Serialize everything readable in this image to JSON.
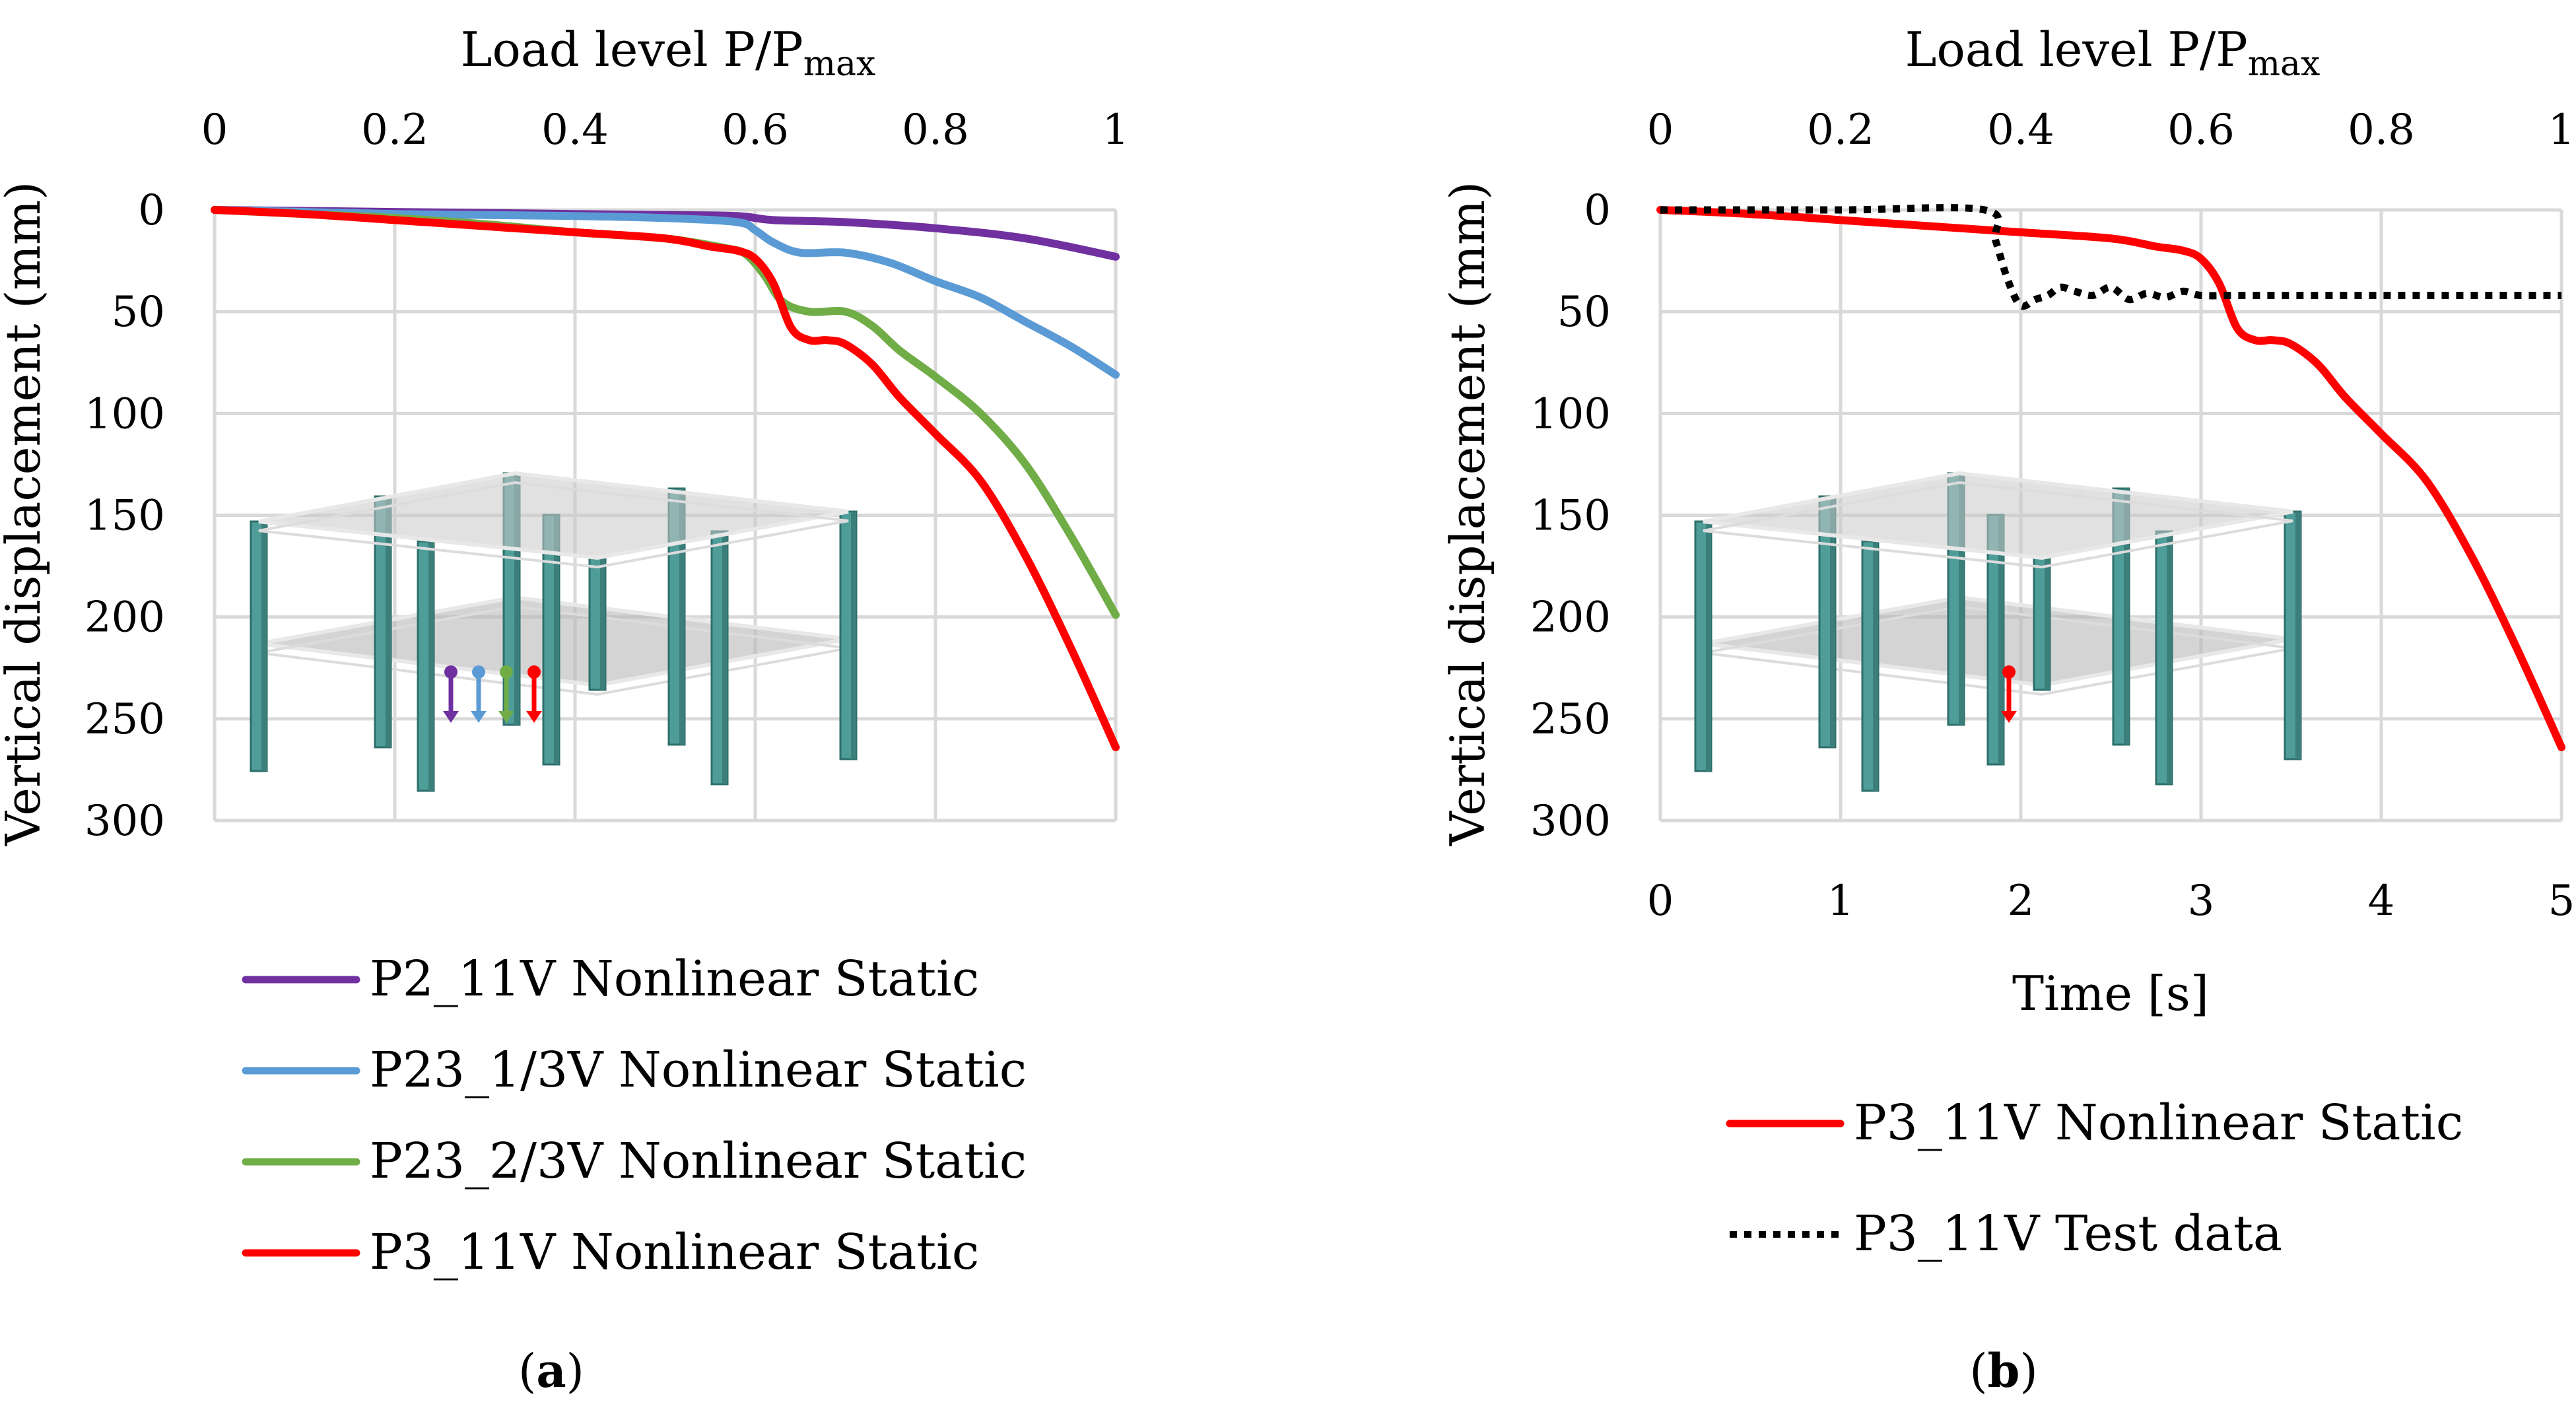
{
  "chart_data": [
    {
      "type": "line",
      "panel_label": "a",
      "xlabel_top": {
        "main": "Load level P/P",
        "sub": "max"
      },
      "ylabel": "Vertical displacement (mm)",
      "xlim": [
        0,
        1
      ],
      "ylim": [
        0,
        300
      ],
      "y_inverted": true,
      "x_axis_position": "top",
      "grid": true,
      "x_ticks": [
        "0",
        "0.2",
        "0.4",
        "0.6",
        "0.8",
        "1"
      ],
      "y_ticks": [
        "0",
        "50",
        "100",
        "150",
        "200",
        "250",
        "300"
      ],
      "legend_position": "bottom",
      "series": [
        {
          "name": "P2_11V Nonlinear Static",
          "color": "#7030a0",
          "style": "solid",
          "x": [
            0,
            0.1,
            0.2,
            0.3,
            0.4,
            0.5,
            0.58,
            0.62,
            0.7,
            0.8,
            0.9,
            1.0
          ],
          "y": [
            0,
            0.5,
            1,
            1.5,
            2,
            2.5,
            3,
            5,
            6,
            9,
            14,
            23
          ]
        },
        {
          "name": "P23_1/3V Nonlinear Static",
          "color": "#5b9bd5",
          "style": "solid",
          "x": [
            0,
            0.1,
            0.2,
            0.3,
            0.4,
            0.5,
            0.58,
            0.6,
            0.62,
            0.65,
            0.7,
            0.75,
            0.8,
            0.85,
            0.9,
            0.95,
            1.0
          ],
          "y": [
            0,
            1,
            2,
            2.5,
            3,
            4,
            6,
            10,
            16,
            21,
            21,
            26,
            35,
            43,
            55,
            67,
            81
          ]
        },
        {
          "name": "P23_2/3V Nonlinear Static",
          "color": "#70ad47",
          "style": "solid",
          "x": [
            0,
            0.1,
            0.2,
            0.3,
            0.4,
            0.5,
            0.57,
            0.59,
            0.61,
            0.63,
            0.66,
            0.7,
            0.73,
            0.76,
            0.8,
            0.85,
            0.9,
            0.95,
            1.0
          ],
          "y": [
            0,
            2,
            4,
            7,
            11,
            14,
            19,
            22,
            32,
            45,
            50,
            50,
            57,
            69,
            82,
            100,
            125,
            160,
            199
          ]
        },
        {
          "name": "P3_11V Nonlinear Static",
          "color": "#ff0000",
          "style": "solid",
          "x": [
            0,
            0.1,
            0.2,
            0.3,
            0.4,
            0.5,
            0.55,
            0.58,
            0.6,
            0.62,
            0.64,
            0.66,
            0.68,
            0.7,
            0.73,
            0.76,
            0.8,
            0.85,
            0.9,
            0.95,
            1.0
          ],
          "y": [
            0,
            2,
            5,
            8,
            11,
            14,
            18,
            20,
            24,
            36,
            58,
            64,
            64,
            66,
            76,
            92,
            110,
            133,
            170,
            215,
            264
          ]
        }
      ]
    },
    {
      "type": "line",
      "panel_label": "b",
      "xlabel_top": {
        "main": "Load level P/P",
        "sub": "max"
      },
      "xlabel_bottom": "Time [s]",
      "ylabel": "Vertical displacement (mm)",
      "xlim": [
        0,
        5
      ],
      "ylim": [
        0,
        300
      ],
      "y_inverted": true,
      "grid": true,
      "top_x_ticks": [
        "0",
        "0.2",
        "0.4",
        "0.6",
        "0.8",
        "1"
      ],
      "bottom_x_ticks": [
        "0",
        "1",
        "2",
        "3",
        "4",
        "5"
      ],
      "y_ticks": [
        "0",
        "50",
        "100",
        "150",
        "200",
        "250",
        "300"
      ],
      "legend_position": "bottom",
      "series": [
        {
          "name": "P3_11V Nonlinear Static",
          "color": "#ff0000",
          "style": "solid",
          "x": [
            0,
            0.5,
            1.0,
            1.5,
            2.0,
            2.5,
            2.75,
            2.9,
            3.0,
            3.1,
            3.2,
            3.3,
            3.4,
            3.5,
            3.65,
            3.8,
            4.0,
            4.25,
            4.5,
            4.75,
            5.0
          ],
          "y": [
            0,
            2,
            5,
            8,
            11,
            14,
            18,
            20,
            24,
            36,
            58,
            64,
            64,
            66,
            76,
            92,
            110,
            133,
            170,
            215,
            264
          ]
        },
        {
          "name": "P3_11V Test data",
          "color": "#000000",
          "style": "dotted",
          "x": [
            0,
            1.0,
            1.8,
            1.86,
            1.93,
            2.0,
            2.08,
            2.15,
            2.22,
            2.3,
            2.4,
            2.5,
            2.6,
            2.7,
            2.8,
            2.9,
            3.0,
            3.2,
            3.5,
            4.0,
            4.5,
            5.0
          ],
          "y": [
            0,
            0,
            0,
            15,
            35,
            47,
            44,
            42,
            38,
            40,
            42,
            38,
            44,
            41,
            43,
            40,
            42,
            42,
            42,
            42,
            42,
            42
          ]
        }
      ]
    }
  ]
}
